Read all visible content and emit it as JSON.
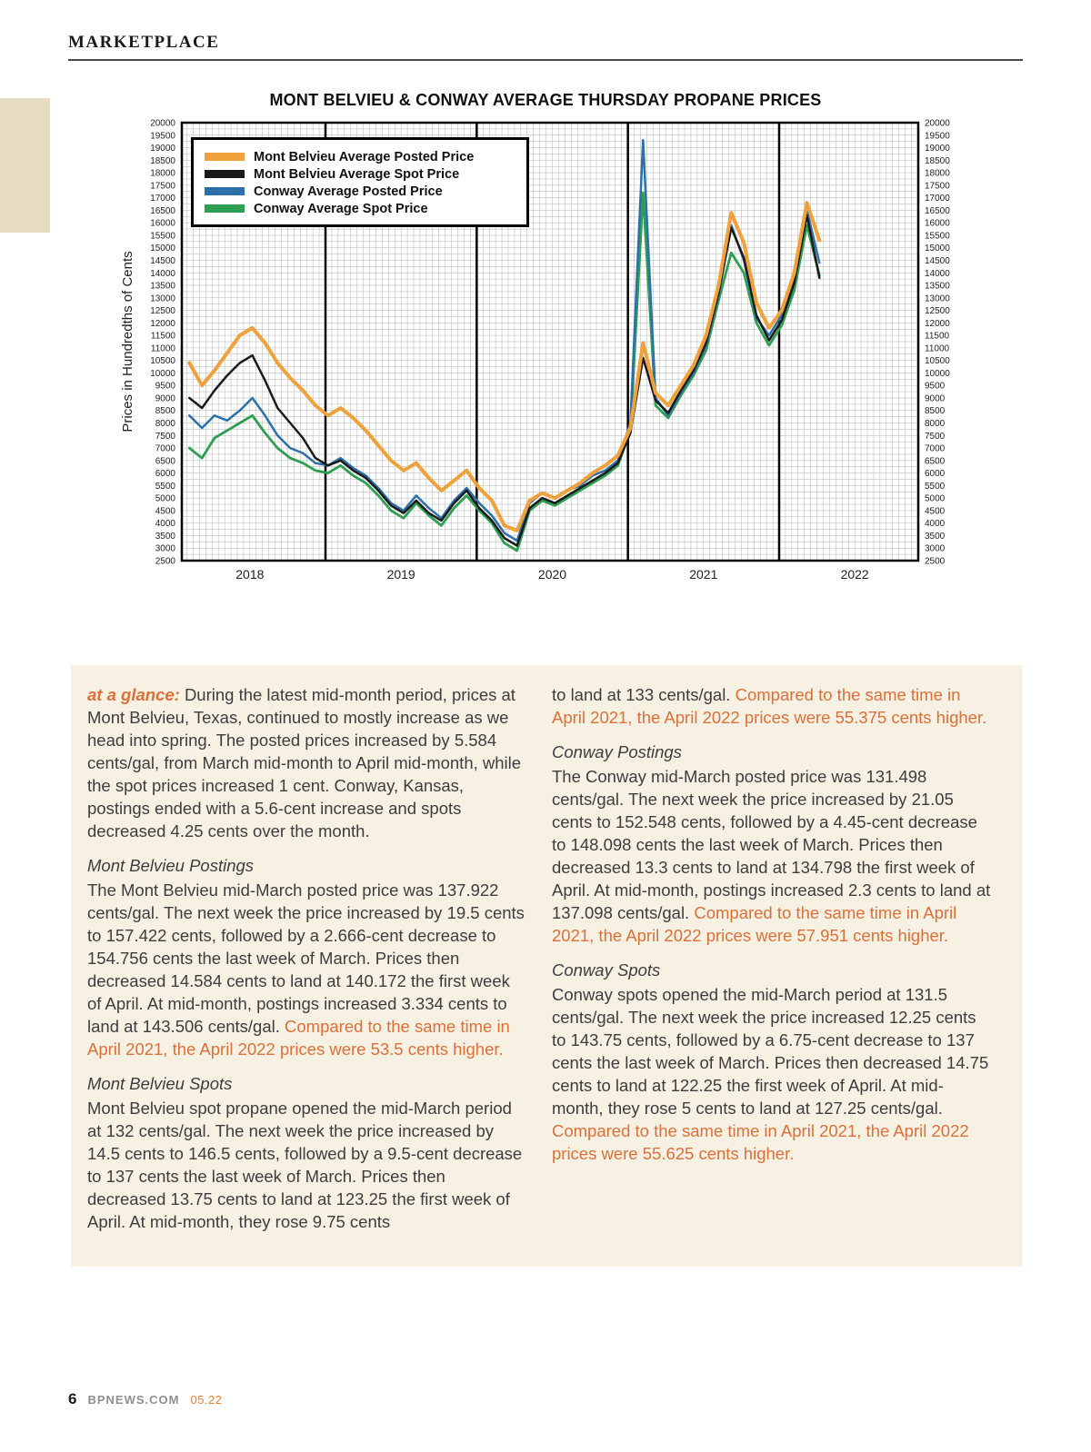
{
  "page": {
    "header": {
      "section": "MARKETPLACE"
    },
    "footer": {
      "page_number": "6",
      "site": "BPNEWS.COM",
      "issue": "05.22"
    }
  },
  "chart_data": {
    "type": "line",
    "title": "MONT BELVIEU & CONWAY AVERAGE THURSDAY PROPANE PRICES",
    "xlabel": "",
    "ylabel": "Prices in Hundredths of Cents",
    "ylim": [
      2500,
      20000
    ],
    "y_tick_step": 500,
    "xlim": [
      2018.05,
      2022.92
    ],
    "x_ticks": [
      "2018",
      "2019",
      "2020",
      "2021",
      "2022"
    ],
    "year_boundaries": [
      2019,
      2020,
      2021,
      2022
    ],
    "grid": true,
    "legend_position": "top-left",
    "x_start": 2018.1,
    "x_step": 0.083333,
    "series": [
      {
        "name": "Mont Belvieu Average Posted Price",
        "color": "#efa23c",
        "values": [
          10400,
          9500,
          10100,
          10800,
          11500,
          11800,
          11200,
          10400,
          9800,
          9300,
          8700,
          8300,
          8600,
          8200,
          7700,
          7100,
          6500,
          6100,
          6400,
          5800,
          5300,
          5700,
          6100,
          5400,
          4900,
          3900,
          3700,
          4900,
          5200,
          5000,
          5300,
          5600,
          6000,
          6300,
          6700,
          7800,
          11200,
          9200,
          8700,
          9500,
          10300,
          11500,
          13500,
          16400,
          15200,
          12800,
          11800,
          12500,
          14000,
          16800,
          15300
        ]
      },
      {
        "name": "Mont Belvieu Average Spot Price",
        "color": "#1a1a1a",
        "values": [
          9000,
          8600,
          9300,
          9900,
          10400,
          10700,
          9700,
          8600,
          8000,
          7400,
          6600,
          6300,
          6500,
          6100,
          5800,
          5300,
          4700,
          4400,
          4900,
          4400,
          4100,
          4800,
          5300,
          4600,
          4100,
          3400,
          3100,
          4600,
          5000,
          4800,
          5100,
          5400,
          5700,
          6000,
          6400,
          7600,
          10600,
          8900,
          8400,
          9300,
          10100,
          11200,
          13200,
          15800,
          14600,
          12300,
          11300,
          12100,
          13600,
          16300,
          13800
        ]
      },
      {
        "name": "Conway Average Posted Price",
        "color": "#2d6fa9",
        "values": [
          8300,
          7800,
          8300,
          8100,
          8500,
          9000,
          8300,
          7500,
          7000,
          6800,
          6400,
          6300,
          6600,
          6200,
          5900,
          5400,
          4800,
          4500,
          5100,
          4600,
          4200,
          4900,
          5400,
          4800,
          4300,
          3600,
          3300,
          4800,
          5200,
          5000,
          5300,
          5500,
          5900,
          6100,
          6500,
          8000,
          19300,
          9000,
          8300,
          9200,
          10000,
          11100,
          13100,
          15900,
          14500,
          12200,
          11500,
          12300,
          13800,
          16500,
          14400
        ]
      },
      {
        "name": "Conway Average Spot Price",
        "color": "#2e9e53",
        "values": [
          7000,
          6600,
          7400,
          7700,
          8000,
          8300,
          7600,
          7000,
          6600,
          6400,
          6100,
          6000,
          6300,
          5900,
          5600,
          5100,
          4500,
          4200,
          4800,
          4300,
          3900,
          4600,
          5100,
          4500,
          4000,
          3200,
          2900,
          4500,
          4900,
          4700,
          5000,
          5300,
          5600,
          5900,
          6300,
          7700,
          17200,
          8700,
          8200,
          9100,
          9900,
          10900,
          12900,
          14800,
          14000,
          12000,
          11100,
          11900,
          13300,
          15900,
          13900
        ]
      }
    ]
  },
  "article": {
    "columns": [
      {
        "blocks": [
          {
            "type": "lead",
            "label": "at a glance:",
            "segments": [
              {
                "c": "body",
                "t": "During the latest mid-month period, prices at Mont Belvieu, Texas, continued to mostly increase as we head into spring. The posted prices increased by 5.584 cents/gal, from March mid-month to April mid-month, while the spot prices increased 1 cent. Conway, Kansas, postings ended with a 5.6-cent increase and spots decreased 4.25 cents over the month."
              }
            ]
          },
          {
            "type": "heading",
            "text": "Mont Belvieu Postings"
          },
          {
            "type": "para",
            "segments": [
              {
                "c": "body",
                "t": "The Mont Belvieu mid-March posted price was 137.922 cents/gal. The next week the price increased by 19.5 cents to 157.422 cents, followed by a 2.666-cent decrease to 154.756 cents the last week of March. Prices then decreased 14.584 cents to land at 140.172 the first week of April. At mid-month, postings increased 3.334 cents to land at 143.506 cents/gal. "
              },
              {
                "c": "accent",
                "t": "Compared to the same time in April 2021, the April 2022 prices were 53.5 cents higher."
              }
            ]
          },
          {
            "type": "heading",
            "text": "Mont Belvieu Spots"
          },
          {
            "type": "para",
            "segments": [
              {
                "c": "body",
                "t": "Mont Belvieu spot propane opened the mid-March period at 132 cents/gal. The next week the price increased by 14.5 cents to 146.5 cents, followed by a 9.5-cent decrease to 137 cents the last week of March. Prices then decreased 13.75 cents to land at 123.25 the first week of April. At mid-month, they rose 9.75 cents"
              }
            ]
          }
        ]
      },
      {
        "blocks": [
          {
            "type": "para",
            "segments": [
              {
                "c": "body",
                "t": "to land at 133 cents/gal. "
              },
              {
                "c": "accent",
                "t": "Compared to the same time in April 2021, the April 2022 prices were 55.375 cents higher."
              }
            ]
          },
          {
            "type": "heading",
            "text": "Conway Postings"
          },
          {
            "type": "para",
            "segments": [
              {
                "c": "body",
                "t": "The Conway mid-March posted price was 131.498 cents/gal. The next week the price increased by 21.05 cents to 152.548 cents, followed by a 4.45-cent decrease to 148.098 cents the last week of March. Prices then decreased 13.3 cents to land at 134.798 the first week of April. At mid-month, postings increased 2.3 cents to land at 137.098 cents/gal. "
              },
              {
                "c": "accent",
                "t": "Compared to the same time in April 2021, the April 2022 prices were 57.951 cents higher."
              }
            ]
          },
          {
            "type": "heading",
            "text": "Conway Spots"
          },
          {
            "type": "para",
            "segments": [
              {
                "c": "body",
                "t": "Conway spots opened the mid-March period at 131.5 cents/gal. The next week the price increased 12.25 cents to 143.75 cents, followed by a 6.75-cent decrease to 137 cents the last week of March. Prices then decreased 14.75 cents to land at 122.25 the first week of April. At mid-month, they rose 5 cents to land at 127.25 cents/gal. "
              },
              {
                "c": "accent",
                "t": "Compared to the same time in April 2021, the April 2022 prices were 55.625 cents higher."
              }
            ]
          }
        ]
      }
    ]
  }
}
